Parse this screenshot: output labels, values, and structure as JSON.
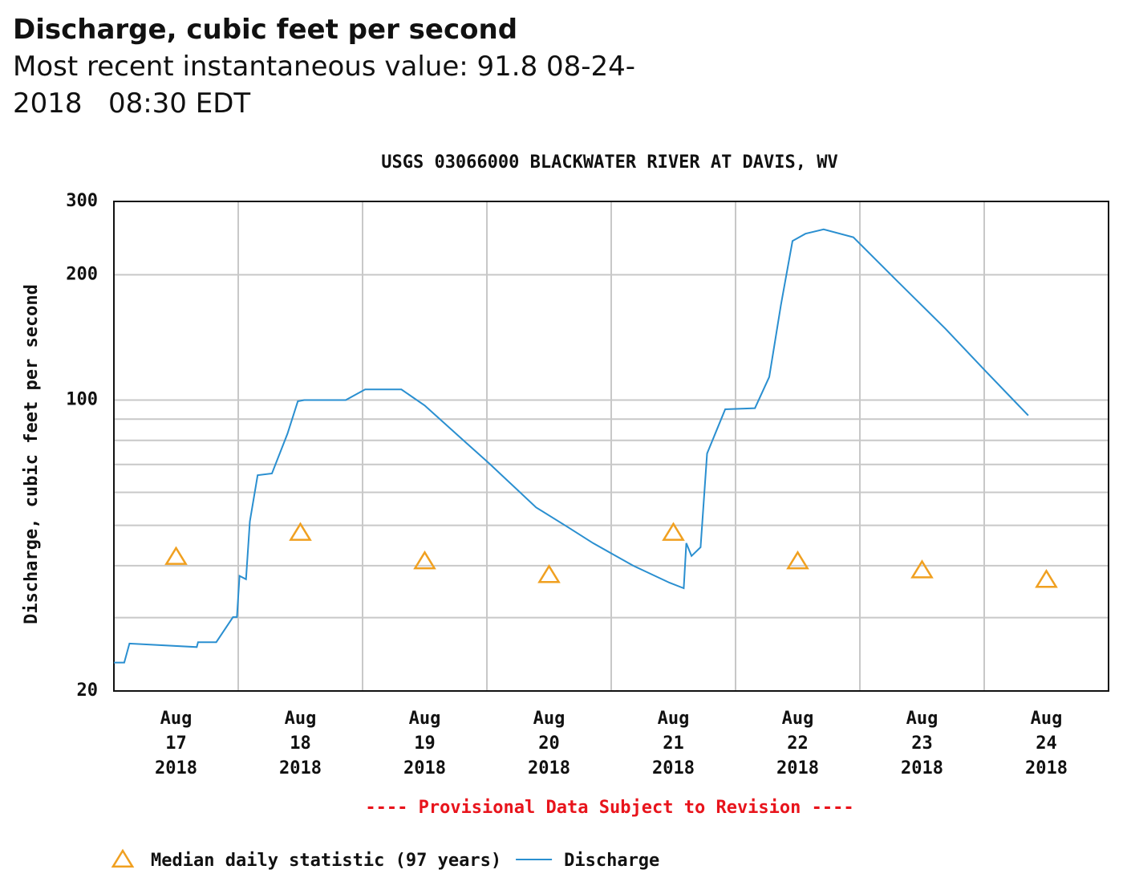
{
  "header": {
    "title": "Discharge, cubic feet per second",
    "subtitle": "Most recent instantaneous value: 91.8 08-24-2018   08:30 EDT"
  },
  "chart_data": {
    "type": "line",
    "title": "USGS 03066000 BLACKWATER RIVER AT DAVIS, WV",
    "y_label": "Discharge, cubic feet per second",
    "note": "---- Provisional Data Subject to Revision ----",
    "log_scale": true,
    "grid": true,
    "ylim": [
      20,
      300
    ],
    "yticks": [
      20,
      100,
      200,
      300
    ],
    "yticks_minor": [
      30,
      40,
      50,
      60,
      70,
      80,
      90
    ],
    "xlim": [
      "2018-08-17T00:00",
      "2018-08-25T00:00"
    ],
    "xgrid": [
      "2018-08-18T00:00",
      "2018-08-19T00:00",
      "2018-08-20T00:00",
      "2018-08-21T00:00",
      "2018-08-22T00:00",
      "2018-08-23T00:00",
      "2018-08-24T00:00"
    ],
    "xticks": [
      {
        "value": "2018-08-17T12:00",
        "label": [
          "Aug",
          "17",
          "2018"
        ]
      },
      {
        "value": "2018-08-18T12:00",
        "label": [
          "Aug",
          "18",
          "2018"
        ]
      },
      {
        "value": "2018-08-19T12:00",
        "label": [
          "Aug",
          "19",
          "2018"
        ]
      },
      {
        "value": "2018-08-20T12:00",
        "label": [
          "Aug",
          "20",
          "2018"
        ]
      },
      {
        "value": "2018-08-21T12:00",
        "label": [
          "Aug",
          "21",
          "2018"
        ]
      },
      {
        "value": "2018-08-22T12:00",
        "label": [
          "Aug",
          "22",
          "2018"
        ]
      },
      {
        "value": "2018-08-23T12:00",
        "label": [
          "Aug",
          "23",
          "2018"
        ]
      },
      {
        "value": "2018-08-24T12:00",
        "label": [
          "Aug",
          "24",
          "2018"
        ]
      }
    ],
    "series": [
      {
        "name": "Median daily statistic (97 years)",
        "color": "#f0a020",
        "marker": "triangle",
        "x": [
          "2018-08-17T12:00",
          "2018-08-18T12:00",
          "2018-08-19T12:00",
          "2018-08-20T12:00",
          "2018-08-21T12:00",
          "2018-08-22T12:00",
          "2018-08-23T12:00",
          "2018-08-24T12:00"
        ],
        "values": [
          42,
          48,
          41,
          38,
          48,
          41,
          39,
          37
        ]
      },
      {
        "name": "Discharge",
        "color": "#2a8fd0",
        "marker": "line",
        "x": [
          "2018-08-17T00:00",
          "2018-08-17T02:00",
          "2018-08-17T03:00",
          "2018-08-17T16:00",
          "2018-08-17T16:15",
          "2018-08-17T19:45",
          "2018-08-17T23:00",
          "2018-08-17T23:45",
          "2018-08-18T00:15",
          "2018-08-18T01:30",
          "2018-08-18T02:15",
          "2018-08-18T03:45",
          "2018-08-18T06:30",
          "2018-08-18T09:30",
          "2018-08-18T11:30",
          "2018-08-18T12:45",
          "2018-08-18T20:45",
          "2018-08-19T00:30",
          "2018-08-19T07:30",
          "2018-08-19T12:00",
          "2018-08-19T19:45",
          "2018-08-20T00:30",
          "2018-08-20T09:30",
          "2018-08-20T15:45",
          "2018-08-20T20:30",
          "2018-08-21T04:15",
          "2018-08-21T11:15",
          "2018-08-21T14:00",
          "2018-08-21T14:30",
          "2018-08-21T15:30",
          "2018-08-21T17:15",
          "2018-08-21T18:30",
          "2018-08-21T22:00",
          "2018-08-22T03:45",
          "2018-08-22T06:30",
          "2018-08-22T08:45",
          "2018-08-22T11:00",
          "2018-08-22T13:30",
          "2018-08-22T17:00",
          "2018-08-22T22:45",
          "2018-08-23T07:15",
          "2018-08-23T16:30",
          "2018-08-24T00:15",
          "2018-08-24T08:30"
        ],
        "values": [
          23.4,
          23.4,
          26.0,
          25.5,
          26.2,
          26.2,
          30.1,
          30.1,
          37.8,
          37.1,
          51.1,
          66.0,
          66.6,
          83.0,
          99.3,
          100,
          100,
          106,
          106,
          97,
          79.4,
          70.3,
          55.2,
          49.4,
          45.3,
          40.0,
          36.4,
          35.3,
          45.3,
          42.2,
          44.3,
          74.4,
          95,
          95.6,
          113.6,
          168.9,
          241,
          251,
          257,
          246,
          193,
          148.4,
          117.4,
          91.8
        ]
      }
    ]
  }
}
